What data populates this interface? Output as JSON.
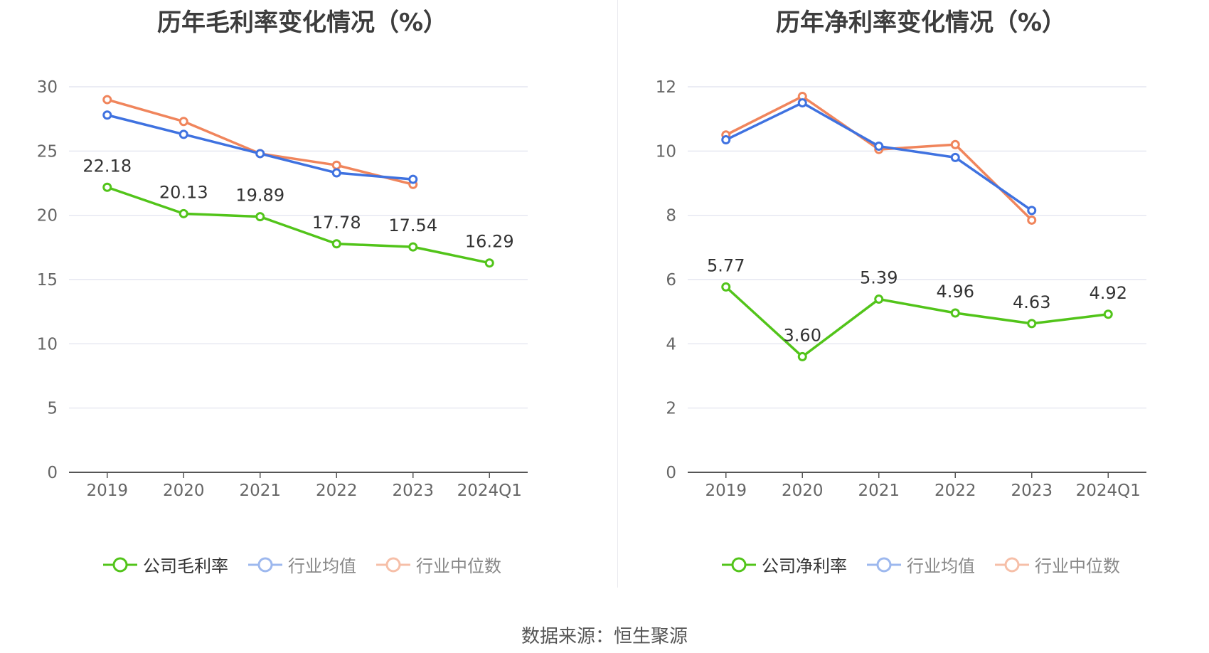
{
  "colors": {
    "company": "#52c41a",
    "avg": "#3f72e0",
    "median": "#f0855c",
    "grid": "#dfe1ee",
    "axis": "#555555",
    "text": "#333333"
  },
  "source": "数据来源：恒生聚源",
  "chart_data": [
    {
      "type": "line",
      "title": "历年毛利率变化情况（%）",
      "categories": [
        "2019",
        "2020",
        "2021",
        "2022",
        "2023",
        "2024Q1"
      ],
      "ylim": [
        0,
        30
      ],
      "yticks": [
        "0",
        "5",
        "10",
        "15",
        "20",
        "25",
        "30"
      ],
      "grid": true,
      "legend_position": "bottom",
      "series": [
        {
          "name": "公司毛利率",
          "key": "company",
          "values": [
            22.18,
            20.13,
            19.89,
            17.78,
            17.54,
            16.29
          ],
          "labels": [
            "22.18",
            "20.13",
            "19.89",
            "17.78",
            "17.54",
            "16.29"
          ]
        },
        {
          "name": "行业均值",
          "key": "avg",
          "values": [
            27.8,
            26.3,
            24.8,
            23.3,
            22.8,
            null
          ]
        },
        {
          "name": "行业中位数",
          "key": "median",
          "values": [
            29.0,
            27.3,
            24.8,
            23.9,
            22.4,
            null
          ]
        }
      ]
    },
    {
      "type": "line",
      "title": "历年净利率变化情况（%）",
      "categories": [
        "2019",
        "2020",
        "2021",
        "2022",
        "2023",
        "2024Q1"
      ],
      "ylim": [
        0,
        12
      ],
      "yticks": [
        "0",
        "2",
        "4",
        "6",
        "8",
        "10",
        "12"
      ],
      "grid": true,
      "legend_position": "bottom",
      "series": [
        {
          "name": "公司净利率",
          "key": "company",
          "values": [
            5.77,
            3.6,
            5.39,
            4.96,
            4.63,
            4.92
          ],
          "labels": [
            "5.77",
            "3.60",
            "5.39",
            "4.96",
            "4.63",
            "4.92"
          ]
        },
        {
          "name": "行业均值",
          "key": "avg",
          "values": [
            10.35,
            11.5,
            10.15,
            9.8,
            8.15,
            null
          ]
        },
        {
          "name": "行业中位数",
          "key": "median",
          "values": [
            10.5,
            11.7,
            10.05,
            10.2,
            7.85,
            null
          ]
        }
      ]
    }
  ]
}
